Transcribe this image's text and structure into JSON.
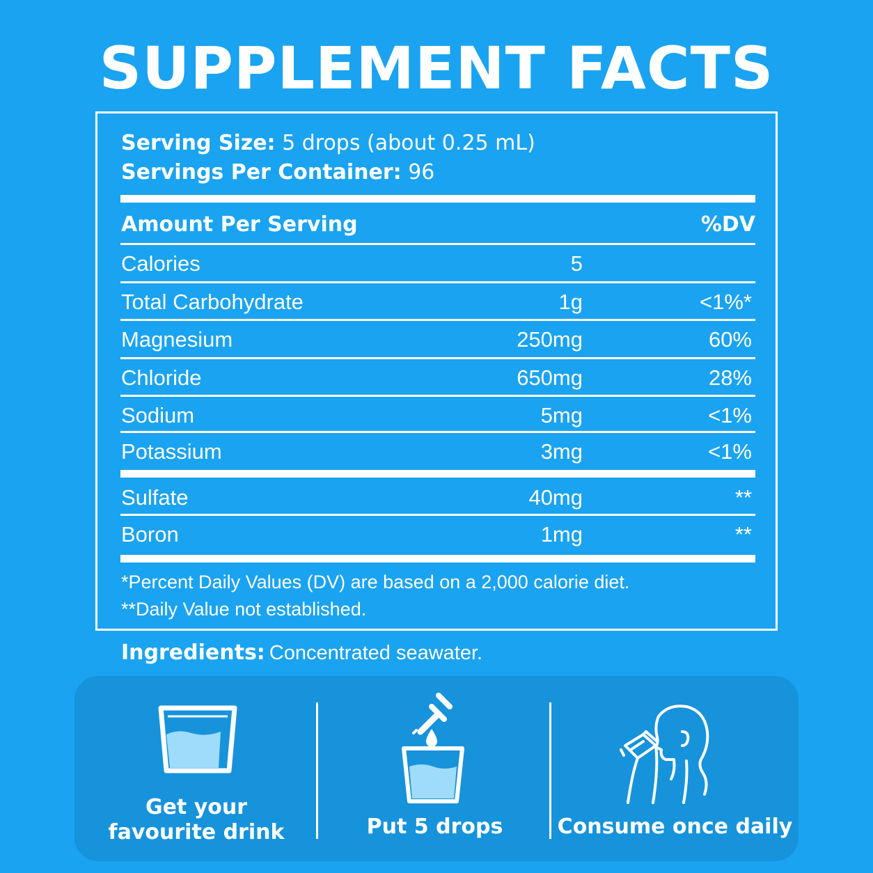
{
  "title": "SUPPLEMENT FACTS",
  "serving": {
    "size_label": "Serving Size:",
    "size_value": "5 drops (about 0.25 mL)",
    "per_container_label": "Servings Per Container:",
    "per_container_value": "96"
  },
  "table": {
    "header_amount": "Amount Per Serving",
    "header_dv": "%DV",
    "rows": [
      {
        "name": "Calories",
        "amount": "5",
        "dv": ""
      },
      {
        "name": "Total Carbohydrate",
        "amount": "1g",
        "dv": "<1%*"
      },
      {
        "name": "Magnesium",
        "amount": "250mg",
        "dv": "60%"
      },
      {
        "name": "Chloride",
        "amount": "650mg",
        "dv": "28%"
      },
      {
        "name": "Sodium",
        "amount": "5mg",
        "dv": "<1%"
      },
      {
        "name": "Potassium",
        "amount": "3mg",
        "dv": "<1%"
      },
      {
        "name": "Sulfate",
        "amount": "40mg",
        "dv": "**"
      },
      {
        "name": "Boron",
        "amount": "1mg",
        "dv": "**"
      }
    ]
  },
  "footnotes": [
    "*Percent Daily Values (DV) are based on a 2,000 calorie diet.",
    "**Daily Value not established."
  ],
  "ingredients": {
    "label": "Ingredients:",
    "value": "Concentrated seawater."
  },
  "steps": [
    {
      "line1": "Get your",
      "line2": "favourite drink",
      "icon": "glass-icon"
    },
    {
      "line1": "Put 5 drops",
      "icon": "dropper-glass-icon"
    },
    {
      "line1": "Consume once daily",
      "icon": "person-drinking-icon"
    }
  ],
  "colors": {
    "background": "#1aa3f0",
    "steps_panel": "#1693db",
    "foreground": "#ffffff",
    "water_fill": "#9fdcfb"
  }
}
